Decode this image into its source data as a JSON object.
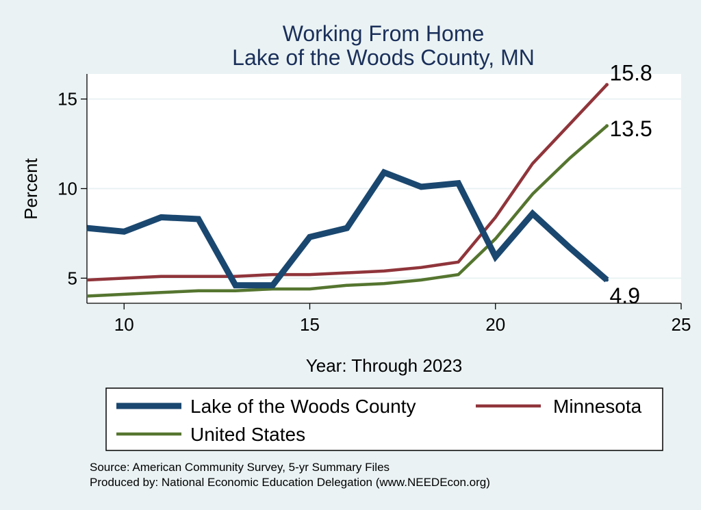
{
  "chart_data": {
    "type": "line",
    "title": [
      "Working From Home",
      "Lake of the Woods County, MN"
    ],
    "xlabel": "Year: Through 2023",
    "ylabel": "Percent",
    "xlim": [
      9,
      25
    ],
    "ylim": [
      3.6,
      16.4
    ],
    "xticks": [
      10,
      15,
      20,
      25
    ],
    "yticks": [
      5,
      10,
      15
    ],
    "grid": "horizontal",
    "legend_placement": "bottom",
    "series": [
      {
        "name": "Lake of the Woods County",
        "color": "#1a476f",
        "x": [
          9,
          10,
          11,
          12,
          13,
          14,
          15,
          16,
          17,
          18,
          19,
          20,
          21,
          22,
          23
        ],
        "y": [
          7.8,
          7.6,
          8.4,
          8.3,
          4.6,
          4.6,
          7.3,
          7.8,
          10.9,
          10.1,
          10.3,
          6.2,
          8.6,
          6.7,
          4.9
        ],
        "end_label": "4.9"
      },
      {
        "name": "Minnesota",
        "color": "#90353b",
        "x": [
          9,
          10,
          11,
          12,
          13,
          14,
          15,
          16,
          17,
          18,
          19,
          20,
          21,
          22,
          23
        ],
        "y": [
          4.9,
          5.0,
          5.1,
          5.1,
          5.1,
          5.2,
          5.2,
          5.3,
          5.4,
          5.6,
          5.9,
          8.4,
          11.4,
          13.6,
          15.8
        ],
        "end_label": "15.8"
      },
      {
        "name": "United States",
        "color": "#55752f",
        "x": [
          9,
          10,
          11,
          12,
          13,
          14,
          15,
          16,
          17,
          18,
          19,
          20,
          21,
          22,
          23
        ],
        "y": [
          4.0,
          4.1,
          4.2,
          4.3,
          4.3,
          4.4,
          4.4,
          4.6,
          4.7,
          4.9,
          5.2,
          7.2,
          9.7,
          11.7,
          13.5
        ],
        "end_label": "13.5"
      }
    ],
    "notes": [
      "Source: American Community Survey, 5-yr Summary Files",
      "Produced by: National Economic Education Delegation (www.NEEDEcon.org)"
    ]
  }
}
